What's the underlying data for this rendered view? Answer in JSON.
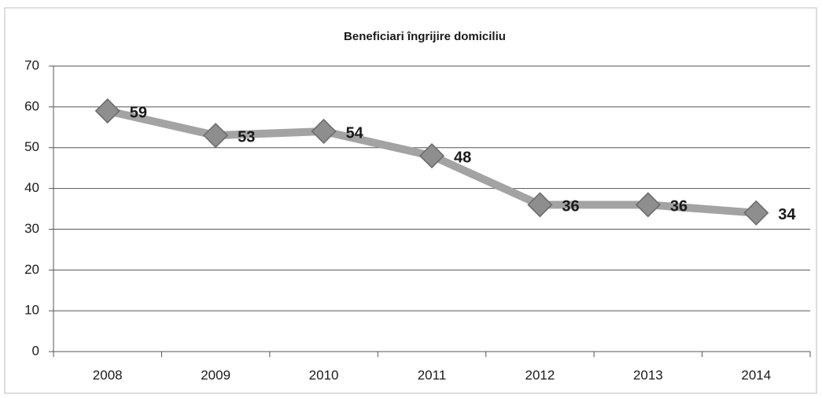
{
  "chart_data": {
    "type": "line",
    "title": "Beneficiari îngrijire domiciliu",
    "categories": [
      "2008",
      "2009",
      "2010",
      "2011",
      "2012",
      "2013",
      "2014"
    ],
    "series": [
      {
        "name": "Beneficiari",
        "color": "#a3a3a3",
        "values": [
          59,
          53,
          54,
          48,
          36,
          36,
          34
        ]
      }
    ],
    "ylim": [
      0,
      70
    ],
    "yticks": [
      0,
      10,
      20,
      30,
      40,
      50,
      60,
      70
    ],
    "grid": true,
    "legend": false
  }
}
